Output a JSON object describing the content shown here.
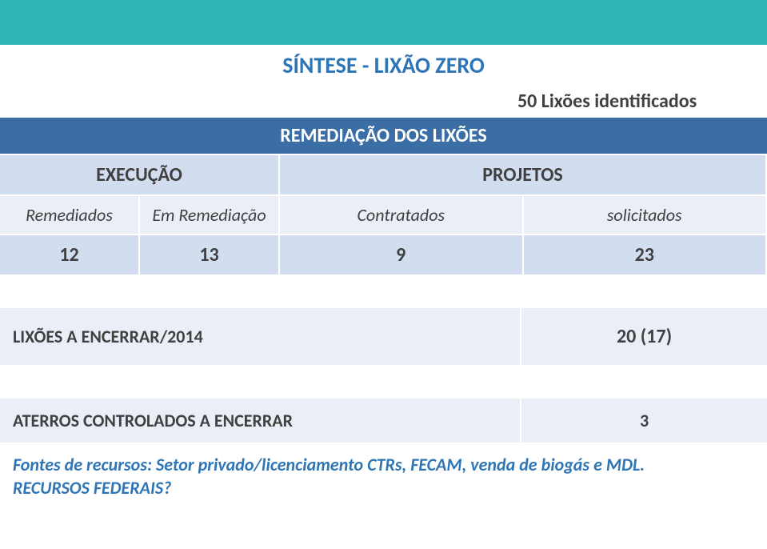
{
  "colors": {
    "top_bar": "#2db4b3",
    "title_blue": "#2e75b6",
    "section_header_bg": "#3a6ea5",
    "light_row_bg": "#d2deef",
    "lighter_row_bg": "#eaeff7",
    "text_dark": "#404040",
    "white": "#ffffff"
  },
  "title": "SÍNTESE - LIXÃO ZERO",
  "subtitle": "50 Lixões identificados",
  "section_header": "REMEDIAÇÃO DOS LIXÕES",
  "header_row": {
    "col1": "EXECUÇÃO",
    "col2": "PROJETOS"
  },
  "sub_row": {
    "c1": "Remediados",
    "c2": "Em Remediação",
    "c3": "Contratados",
    "c4": "solicitados"
  },
  "data_row": {
    "c1": "12",
    "c2": "13",
    "c3": "9",
    "c4": "23"
  },
  "table2": {
    "label": "LIXÕES A ENCERRAR/2014",
    "value": "20 (17)"
  },
  "table3": {
    "label": "ATERROS CONTROLADOS A ENCERRAR",
    "value": "3"
  },
  "footer_line1": "Fontes de recursos:  Setor privado/licenciamento CTRs, FECAM, venda de biogás e MDL.",
  "footer_line2": "RECURSOS FEDERAIS?"
}
